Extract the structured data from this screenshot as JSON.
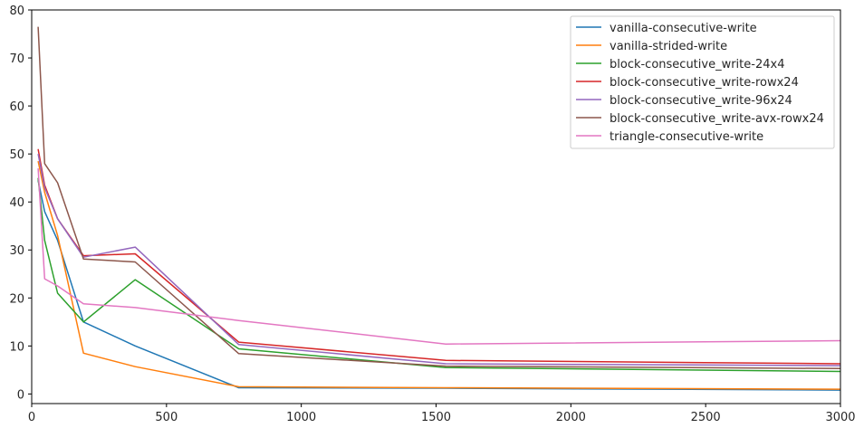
{
  "chart_data": {
    "type": "line",
    "title": "",
    "xlabel": "",
    "ylabel": "",
    "xlim": [
      0,
      3000
    ],
    "ylim": [
      -2,
      80
    ],
    "x_ticks": [
      0,
      500,
      1000,
      1500,
      2000,
      2500,
      3000
    ],
    "y_ticks": [
      0,
      10,
      20,
      30,
      40,
      50,
      60,
      70,
      80
    ],
    "grid": false,
    "legend_position": "top-right",
    "series": [
      {
        "name": "vanilla-consecutive-write",
        "color": "#1f77b4",
        "x": [
          24,
          48,
          96,
          192,
          384,
          768,
          1536,
          3000
        ],
        "y": [
          44.5,
          38.0,
          32.0,
          15.0,
          10.0,
          1.3,
          1.2,
          0.8
        ]
      },
      {
        "name": "vanilla-strided-write",
        "color": "#ff7f0e",
        "x": [
          24,
          48,
          96,
          192,
          384,
          768,
          1536,
          3000
        ],
        "y": [
          48.5,
          42.0,
          33.0,
          8.5,
          5.7,
          1.5,
          1.3,
          1.0
        ]
      },
      {
        "name": "block-consecutive_write-24x4",
        "color": "#2ca02c",
        "x": [
          24,
          48,
          96,
          192,
          384,
          768,
          1536,
          3000
        ],
        "y": [
          45.0,
          32.0,
          21.0,
          15.0,
          23.8,
          9.4,
          5.5,
          4.7
        ]
      },
      {
        "name": "block-consecutive_write-rowx24",
        "color": "#d62728",
        "x": [
          24,
          48,
          96,
          192,
          384,
          768,
          1536,
          3000
        ],
        "y": [
          51.0,
          43.5,
          36.5,
          28.8,
          29.2,
          10.8,
          7.0,
          6.3
        ]
      },
      {
        "name": "block-consecutive_write-96x24",
        "color": "#9467bd",
        "x": [
          24,
          48,
          96,
          192,
          384,
          768,
          1536,
          3000
        ],
        "y": [
          50.0,
          43.0,
          36.5,
          28.5,
          30.6,
          10.3,
          6.3,
          5.9
        ]
      },
      {
        "name": "block-consecutive_write-avx-rowx24",
        "color": "#8c564b",
        "x": [
          24,
          48,
          96,
          192,
          384,
          768,
          1536,
          3000
        ],
        "y": [
          76.5,
          48.0,
          44.0,
          28.1,
          27.5,
          8.4,
          5.8,
          5.3
        ]
      },
      {
        "name": "triangle-consecutive-write",
        "color": "#e377c2",
        "x": [
          24,
          48,
          96,
          192,
          384,
          768,
          1536,
          3000
        ],
        "y": [
          47.0,
          24.0,
          22.5,
          18.8,
          18.0,
          15.3,
          10.4,
          11.1
        ]
      }
    ]
  }
}
